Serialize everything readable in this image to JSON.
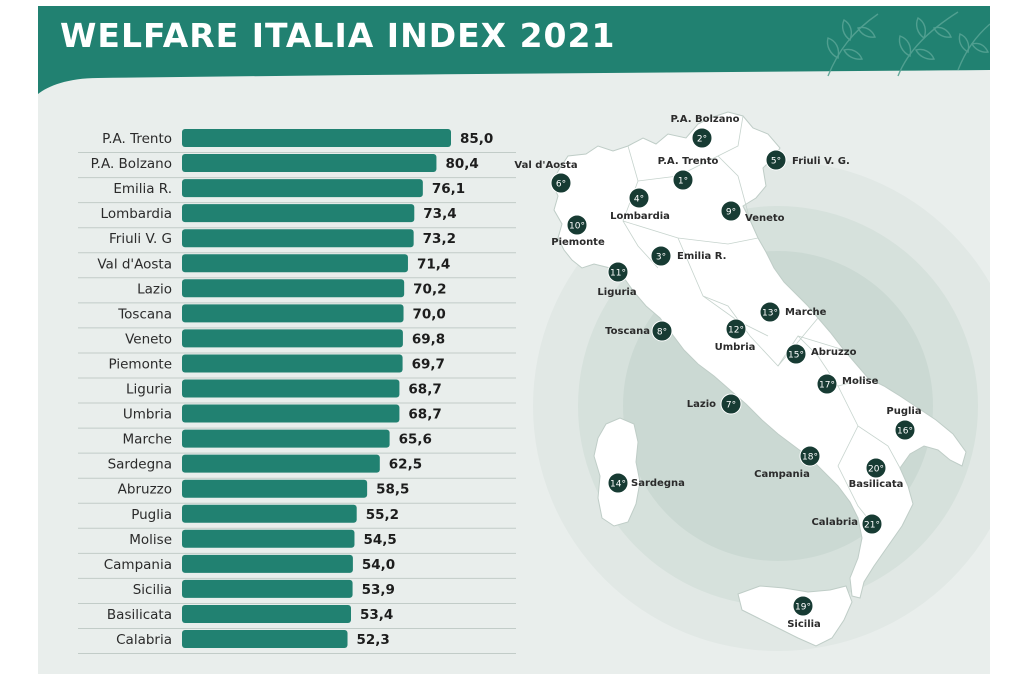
{
  "header": {
    "title": "WELFARE ITALIA INDEX 2021"
  },
  "colors": {
    "bar": "#218171",
    "header": "#218171",
    "background": "#e9eeec",
    "marker": "#173b33",
    "land": "#ffffff",
    "circle": "#cfdcd7"
  },
  "icons": {
    "header_decoration": "leaf-branch-icon"
  },
  "chart_data": {
    "type": "bar",
    "orientation": "horizontal",
    "title": "WELFARE ITALIA INDEX 2021",
    "categories": [
      "P.A. Trento",
      "P.A. Bolzano",
      "Emilia R.",
      "Lombardia",
      "Friuli V. G",
      "Val d'Aosta",
      "Lazio",
      "Toscana",
      "Veneto",
      "Piemonte",
      "Liguria",
      "Umbria",
      "Marche",
      "Sardegna",
      "Abruzzo",
      "Puglia",
      "Molise",
      "Campania",
      "Sicilia",
      "Basilicata",
      "Calabria"
    ],
    "values": [
      85.0,
      80.4,
      76.1,
      73.4,
      73.2,
      71.4,
      70.2,
      70.0,
      69.8,
      69.7,
      68.7,
      68.7,
      65.6,
      62.5,
      58.5,
      55.2,
      54.5,
      54.0,
      53.9,
      53.4,
      52.3
    ],
    "value_labels": [
      "85,0",
      "80,4",
      "76,1",
      "73,4",
      "73,2",
      "71,4",
      "70,2",
      "70,0",
      "69,8",
      "69,7",
      "68,7",
      "68,7",
      "65,6",
      "62,5",
      "58,5",
      "55,2",
      "54,5",
      "54,0",
      "53,9",
      "53,4",
      "52,3"
    ],
    "xlim": [
      0,
      85
    ],
    "xlabel": "",
    "ylabel": ""
  },
  "map": {
    "markers": [
      {
        "region": "P.A. Trento",
        "rank": "1°"
      },
      {
        "region": "P.A. Bolzano",
        "rank": "2°"
      },
      {
        "region": "Emilia R.",
        "rank": "3°"
      },
      {
        "region": "Lombardia",
        "rank": "4°"
      },
      {
        "region": "Friuli V. G.",
        "rank": "5°"
      },
      {
        "region": "Val d'Aosta",
        "rank": "6°"
      },
      {
        "region": "Lazio",
        "rank": "7°"
      },
      {
        "region": "Toscana",
        "rank": "8°"
      },
      {
        "region": "Veneto",
        "rank": "9°"
      },
      {
        "region": "Piemonte",
        "rank": "10°"
      },
      {
        "region": "Liguria",
        "rank": "11°"
      },
      {
        "region": "Umbria",
        "rank": "12°"
      },
      {
        "region": "Marche",
        "rank": "13°"
      },
      {
        "region": "Sardegna",
        "rank": "14°"
      },
      {
        "region": "Abruzzo",
        "rank": "15°"
      },
      {
        "region": "Puglia",
        "rank": "16°"
      },
      {
        "region": "Molise",
        "rank": "17°"
      },
      {
        "region": "Campania",
        "rank": "18°"
      },
      {
        "region": "Sicilia",
        "rank": "19°"
      },
      {
        "region": "Basilicata",
        "rank": "20°"
      },
      {
        "region": "Calabria",
        "rank": "21°"
      }
    ]
  }
}
